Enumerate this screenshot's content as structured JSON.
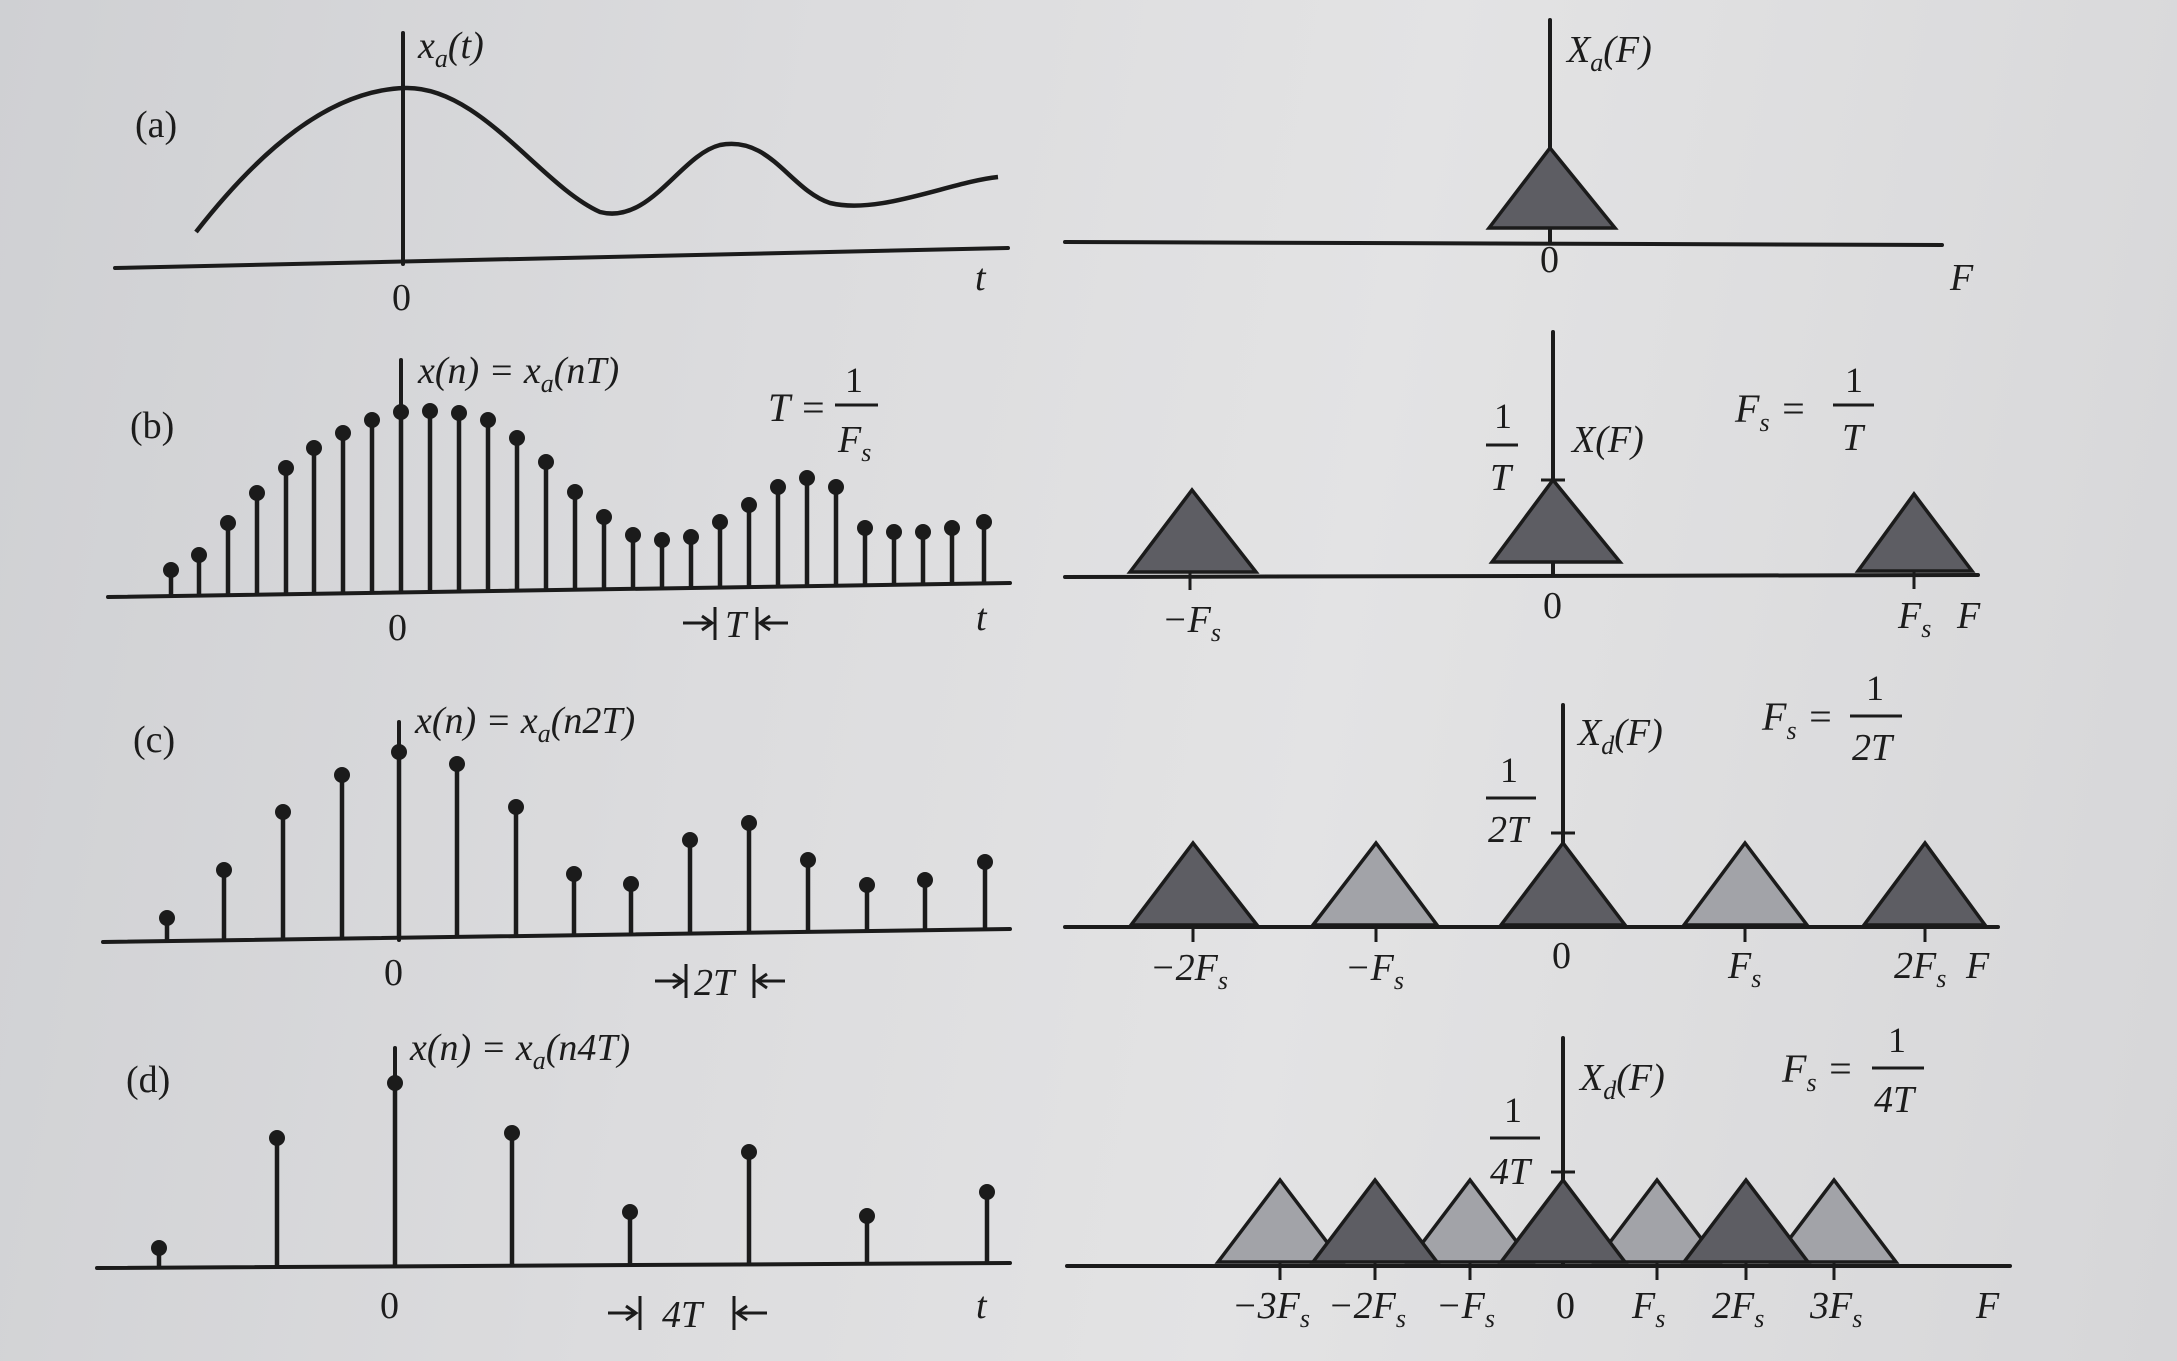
{
  "panels": {
    "a": {
      "label": "(a)",
      "time_title": "x_a(t)",
      "time_axis": "t",
      "time_origin": "0",
      "freq_title": "X_a(F)",
      "freq_axis": "F",
      "freq_origin": "0"
    },
    "b": {
      "label": "(b)",
      "time_title": "x(n) = x_a(nT)",
      "period_eq_lhs": "T =",
      "period_eq_num": "1",
      "period_eq_den": "F_s",
      "spacing": "T",
      "time_axis": "t",
      "time_origin": "0",
      "freq_title": "X(F)",
      "amp_num": "1",
      "amp_den": "T",
      "fs_eq_lhs": "F_s =",
      "fs_eq_num": "1",
      "fs_eq_den": "T",
      "freq_ticks": [
        "−F_s",
        "0",
        "F_s",
        "F"
      ]
    },
    "c": {
      "label": "(c)",
      "time_title": "x(n) = x_a(n2T)",
      "spacing": "2T",
      "time_origin": "0",
      "freq_title": "X_d(F)",
      "amp_num": "1",
      "amp_den": "2T",
      "fs_eq_lhs": "F_s =",
      "fs_eq_num": "1",
      "fs_eq_den": "2T",
      "freq_ticks": [
        "−2F_s",
        "−F_s",
        "0",
        "F_s",
        "2F_s",
        "F"
      ]
    },
    "d": {
      "label": "(d)",
      "time_title": "x(n) = x_a(n4T)",
      "spacing": "4T",
      "time_axis": "t",
      "time_origin": "0",
      "freq_title": "X_d(F)",
      "amp_num": "1",
      "amp_den": "4T",
      "fs_eq_lhs": "F_s =",
      "fs_eq_num": "1",
      "fs_eq_den": "4T",
      "freq_ticks": [
        "−3F_s",
        "−2F_s",
        "−F_s",
        "0",
        "F_s",
        "2F_s",
        "3F_s",
        "F"
      ]
    }
  },
  "colors": {
    "ink": "#1b1b1b",
    "spectrum_dark": "#5d5d63",
    "spectrum_light": "#a2a3a8",
    "paper": "#dcdcde"
  }
}
